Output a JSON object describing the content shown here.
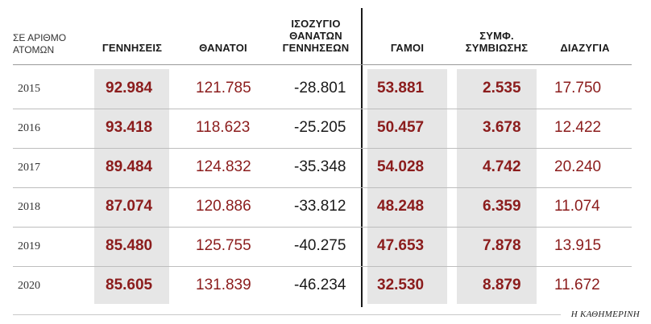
{
  "header": {
    "row_label_line1": "ΣΕ ΑΡΙΘΜΟ",
    "row_label_line2": "ΑΤΟΜΩΝ",
    "births": "ΓΕΝΝΗΣΕΙΣ",
    "deaths": "ΘΑΝΑΤΟΙ",
    "balance_line1": "ΙΣΟΖΥΓΙΟ",
    "balance_line2": "ΘΑΝΑΤΩΝ",
    "balance_line3": "ΓΕΝΝΗΣΕΩΝ",
    "marriages": "ΓΑΜΟΙ",
    "partnerships_line1": "ΣΥΜΦ.",
    "partnerships_line2": "ΣΥΜΒΙΩΣΗΣ",
    "divorces": "ΔΙΑΖΥΓΙΑ"
  },
  "rows": [
    {
      "year": "2015",
      "births": "92.984",
      "deaths": "121.785",
      "balance": "-28.801",
      "marriages": "53.881",
      "partnerships": "2.535",
      "divorces": "17.750"
    },
    {
      "year": "2016",
      "births": "93.418",
      "deaths": "118.623",
      "balance": "-25.205",
      "marriages": "50.457",
      "partnerships": "3.678",
      "divorces": "12.422"
    },
    {
      "year": "2017",
      "births": "89.484",
      "deaths": "124.832",
      "balance": "-35.348",
      "marriages": "54.028",
      "partnerships": "4.742",
      "divorces": "20.240"
    },
    {
      "year": "2018",
      "births": "87.074",
      "deaths": "120.886",
      "balance": "-33.812",
      "marriages": "48.248",
      "partnerships": "6.359",
      "divorces": "11.074"
    },
    {
      "year": "2019",
      "births": "85.480",
      "deaths": "125.755",
      "balance": "-40.275",
      "marriages": "47.653",
      "partnerships": "7.878",
      "divorces": "13.915"
    },
    {
      "year": "2020",
      "births": "85.605",
      "deaths": "131.839",
      "balance": "-46.234",
      "marriages": "32.530",
      "partnerships": "8.879",
      "divorces": "11.672"
    }
  ],
  "credit": "Η ΚΑΘΗΜΕΡΙΝΗ",
  "colors": {
    "accent_red": "#8b1c1c",
    "highlight_grey": "#e6e6e6",
    "text_dark": "#1a1a1a"
  }
}
